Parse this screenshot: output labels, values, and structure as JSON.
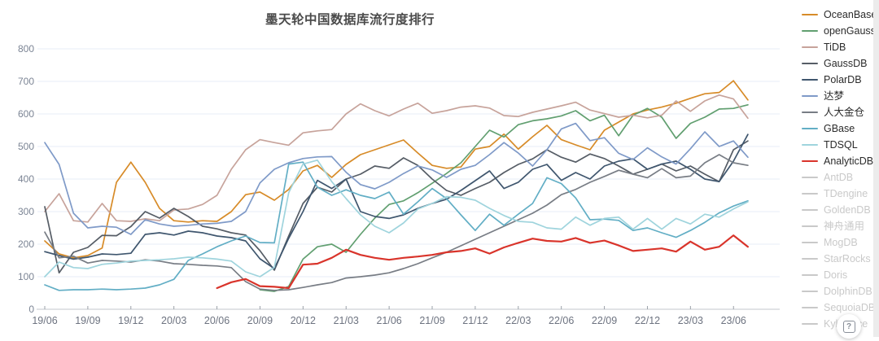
{
  "title": "墨天轮中国数据库流行度排行",
  "help_button": {
    "label": "?"
  },
  "chart_data": {
    "type": "line",
    "title": "墨天轮中国数据库流行度排行",
    "xlabel": "",
    "ylabel": "",
    "ylim": [
      0,
      800
    ],
    "y_ticks": [
      0,
      100,
      200,
      300,
      400,
      500,
      600,
      700,
      800
    ],
    "grid": true,
    "legend_position": "right",
    "x_tick_labels": [
      "19/06",
      "19/09",
      "19/12",
      "20/03",
      "20/06",
      "20/09",
      "20/12",
      "21/03",
      "21/06",
      "21/09",
      "21/12",
      "22/03",
      "22/06",
      "22/09",
      "22/12",
      "23/03",
      "23/06"
    ],
    "x": [
      "19/06",
      "19/07",
      "19/08",
      "19/09",
      "19/10",
      "19/11",
      "19/12",
      "20/01",
      "20/02",
      "20/03",
      "20/04",
      "20/05",
      "20/06",
      "20/07",
      "20/08",
      "20/09",
      "20/10",
      "20/11",
      "20/12",
      "21/01",
      "21/02",
      "21/03",
      "21/04",
      "21/05",
      "21/06",
      "21/07",
      "21/08",
      "21/09",
      "21/10",
      "21/11",
      "21/12",
      "22/01",
      "22/02",
      "22/03",
      "22/04",
      "22/05",
      "22/06",
      "22/07",
      "22/08",
      "22/09",
      "22/10",
      "22/11",
      "22/12",
      "23/01",
      "23/02",
      "23/03",
      "23/04",
      "23/05",
      "23/06",
      "23/07"
    ],
    "series": [
      {
        "name": "OceanBase",
        "color": "#d78b28",
        "active": true,
        "values": [
          210,
          170,
          158,
          165,
          188,
          390,
          452,
          390,
          310,
          272,
          268,
          272,
          270,
          300,
          352,
          360,
          335,
          368,
          425,
          442,
          405,
          445,
          475,
          490,
          505,
          520,
          480,
          442,
          433,
          437,
          492,
          500,
          538,
          492,
          530,
          565,
          521,
          505,
          490,
          550,
          575,
          600,
          612,
          621,
          633,
          648,
          662,
          666,
          702,
          643
        ]
      },
      {
        "name": "openGauss",
        "color": "#619f70",
        "active": true,
        "values": [
          null,
          null,
          null,
          null,
          null,
          null,
          null,
          null,
          null,
          null,
          null,
          null,
          null,
          null,
          null,
          60,
          55,
          70,
          154,
          192,
          200,
          175,
          230,
          280,
          322,
          333,
          358,
          387,
          417,
          450,
          500,
          550,
          529,
          567,
          579,
          585,
          594,
          610,
          579,
          596,
          533,
          596,
          617,
          590,
          525,
          571,
          590,
          615,
          617,
          628
        ]
      },
      {
        "name": "TiDB",
        "color": "#c7a39b",
        "active": true,
        "values": [
          300,
          355,
          272,
          268,
          325,
          272,
          270,
          278,
          272,
          305,
          308,
          322,
          350,
          430,
          490,
          521,
          512,
          504,
          542,
          548,
          552,
          600,
          631,
          610,
          594,
          615,
          633,
          602,
          610,
          621,
          625,
          618,
          595,
          592,
          605,
          615,
          625,
          636,
          612,
          601,
          590,
          596,
          588,
          596,
          640,
          608,
          640,
          658,
          646,
          587
        ]
      },
      {
        "name": "GaussDB",
        "color": "#565d66",
        "active": true,
        "values": [
          315,
          112,
          175,
          190,
          227,
          226,
          254,
          300,
          280,
          310,
          285,
          255,
          247,
          235,
          228,
          180,
          120,
          225,
          325,
          375,
          360,
          400,
          415,
          440,
          433,
          465,
          442,
          400,
          365,
          350,
          371,
          390,
          420,
          445,
          462,
          490,
          467,
          452,
          477,
          463,
          440,
          415,
          430,
          446,
          425,
          440,
          415,
          392,
          490,
          517
        ]
      },
      {
        "name": "PolarDB",
        "color": "#3f566e",
        "active": true,
        "values": [
          177,
          165,
          154,
          160,
          170,
          168,
          172,
          230,
          235,
          228,
          240,
          235,
          225,
          220,
          210,
          155,
          125,
          218,
          300,
          396,
          371,
          400,
          300,
          285,
          279,
          290,
          310,
          325,
          338,
          365,
          395,
          425,
          371,
          390,
          430,
          445,
          396,
          420,
          400,
          440,
          455,
          462,
          430,
          446,
          455,
          430,
          400,
          392,
          455,
          537
        ]
      },
      {
        "name": "达梦",
        "color": "#7f9ac8",
        "active": true,
        "values": [
          512,
          445,
          295,
          250,
          255,
          252,
          230,
          275,
          262,
          255,
          258,
          262,
          264,
          270,
          300,
          388,
          430,
          450,
          463,
          468,
          469,
          421,
          383,
          370,
          390,
          417,
          440,
          428,
          405,
          430,
          442,
          475,
          512,
          480,
          440,
          490,
          554,
          571,
          518,
          527,
          479,
          460,
          496,
          468,
          446,
          493,
          545,
          500,
          517,
          467
        ]
      },
      {
        "name": "人大金仓",
        "color": "#787d85",
        "active": true,
        "values": [
          237,
          158,
          163,
          142,
          150,
          148,
          145,
          152,
          148,
          140,
          138,
          135,
          133,
          128,
          85,
          62,
          58,
          60,
          67,
          75,
          82,
          96,
          100,
          105,
          112,
          125,
          140,
          158,
          175,
          195,
          215,
          235,
          255,
          275,
          295,
          320,
          352,
          368,
          390,
          408,
          427,
          415,
          404,
          432,
          404,
          409,
          450,
          475,
          450,
          442
        ]
      },
      {
        "name": "GBase",
        "color": "#62aec5",
        "active": true,
        "values": [
          75,
          58,
          60,
          60,
          62,
          60,
          62,
          65,
          75,
          92,
          150,
          170,
          192,
          210,
          225,
          205,
          204,
          446,
          452,
          375,
          350,
          367,
          350,
          340,
          360,
          292,
          330,
          371,
          340,
          290,
          242,
          292,
          258,
          292,
          325,
          404,
          386,
          342,
          275,
          277,
          273,
          242,
          250,
          235,
          221,
          242,
          267,
          296,
          317,
          333
        ]
      },
      {
        "name": "TDSQL",
        "color": "#9fd4dd",
        "active": true,
        "values": [
          100,
          145,
          128,
          125,
          138,
          142,
          148,
          150,
          152,
          155,
          160,
          158,
          154,
          148,
          115,
          100,
          129,
          358,
          446,
          458,
          392,
          340,
          290,
          255,
          235,
          265,
          308,
          325,
          346,
          344,
          335,
          310,
          288,
          270,
          267,
          250,
          246,
          283,
          258,
          279,
          283,
          246,
          279,
          246,
          279,
          262,
          292,
          283,
          308,
          330
        ]
      },
      {
        "name": "AnalyticDB",
        "color": "#d9342b",
        "active": true,
        "values": [
          null,
          null,
          null,
          null,
          null,
          null,
          null,
          null,
          null,
          null,
          null,
          null,
          65,
          83,
          93,
          71,
          69,
          65,
          137,
          140,
          158,
          183,
          167,
          158,
          152,
          158,
          162,
          167,
          175,
          179,
          187,
          171,
          190,
          204,
          217,
          210,
          208,
          219,
          204,
          211,
          196,
          179,
          183,
          187,
          177,
          208,
          183,
          192,
          227,
          192
        ]
      },
      {
        "name": "AntDB",
        "color": "#c9c9c9",
        "active": false,
        "values": []
      },
      {
        "name": "TDengine",
        "color": "#c9c9c9",
        "active": false,
        "values": []
      },
      {
        "name": "GoldenDB",
        "color": "#c9c9c9",
        "active": false,
        "values": []
      },
      {
        "name": "神舟通用",
        "color": "#c9c9c9",
        "active": false,
        "values": []
      },
      {
        "name": "MogDB",
        "color": "#c9c9c9",
        "active": false,
        "values": []
      },
      {
        "name": "StarRocks",
        "color": "#c9c9c9",
        "active": false,
        "values": []
      },
      {
        "name": "Doris",
        "color": "#c9c9c9",
        "active": false,
        "values": []
      },
      {
        "name": "DolphinDB",
        "color": "#c9c9c9",
        "active": false,
        "values": []
      },
      {
        "name": "SequoiaDB",
        "color": "#c9c9c9",
        "active": false,
        "values": []
      },
      {
        "name": "Kyligence",
        "color": "#c9c9c9",
        "active": false,
        "values": []
      }
    ]
  },
  "colors": {
    "grid": "#e7eef7",
    "axis_line": "#c3c7ce",
    "tick": "#9aa0a8",
    "y_label": "#7b8494",
    "x_label": "#6d7380",
    "title": "#4a4a4a",
    "disabled_legend": "#c9c9c9"
  }
}
